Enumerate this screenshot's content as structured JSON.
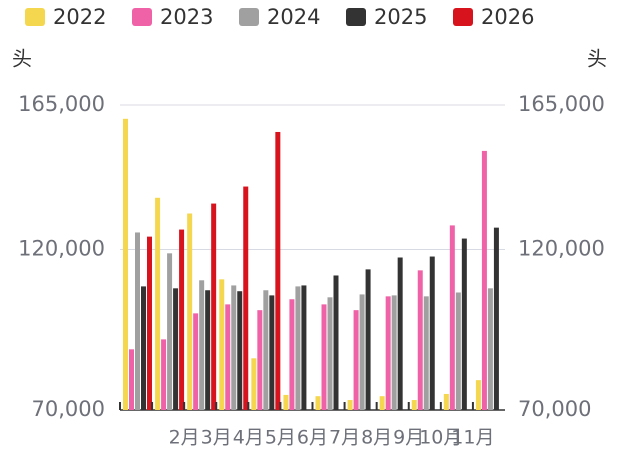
{
  "chart_data": {
    "type": "bar",
    "y_label": "头",
    "y2_label": "头",
    "categories": [
      null,
      "2月",
      "3月",
      "4月",
      "5月",
      "6月",
      "7月",
      "8月",
      "9月",
      "10月",
      "11月",
      null
    ],
    "series": [
      {
        "name": "2022",
        "color": "#f5d64f",
        "values": [
          160700,
          136100,
          131200,
          110700,
          86100,
          74700,
          74300,
          73100,
          74300,
          73100,
          75000,
          79300
        ]
      },
      {
        "name": "2023",
        "color": "#f062a8",
        "values": [
          88900,
          92000,
          100100,
          102900,
          101100,
          104500,
          102900,
          101100,
          105400,
          113500,
          127500,
          150700
        ]
      },
      {
        "name": "2024",
        "color": "#a0a0a0",
        "values": [
          125300,
          118800,
          110400,
          108800,
          107300,
          108500,
          105100,
          106000,
          105700,
          105400,
          106600,
          107900
        ]
      },
      {
        "name": "2025",
        "color": "#333333",
        "values": [
          108500,
          107900,
          107300,
          107000,
          105700,
          108800,
          111900,
          113800,
          117500,
          117800,
          123400,
          126800
        ]
      },
      {
        "name": "2026",
        "color": "#d7141e",
        "values": [
          124000,
          126200,
          134300,
          139600,
          156600,
          null,
          null,
          null,
          null,
          null,
          null,
          null
        ]
      }
    ],
    "ylim": [
      70000,
      165000
    ],
    "yticks": [
      {
        "value": 70000,
        "label": "70,000"
      },
      {
        "value": 120000,
        "label": "120,000"
      },
      {
        "value": 165000,
        "label": "165,000"
      }
    ],
    "y2lim": [
      70000,
      165000
    ],
    "y2ticks": [
      {
        "value": 70000,
        "label": "70,000"
      },
      {
        "value": 120000,
        "label": "120,000"
      },
      {
        "value": 165000,
        "label": "165,000"
      }
    ],
    "grid": true,
    "legend": "top"
  }
}
